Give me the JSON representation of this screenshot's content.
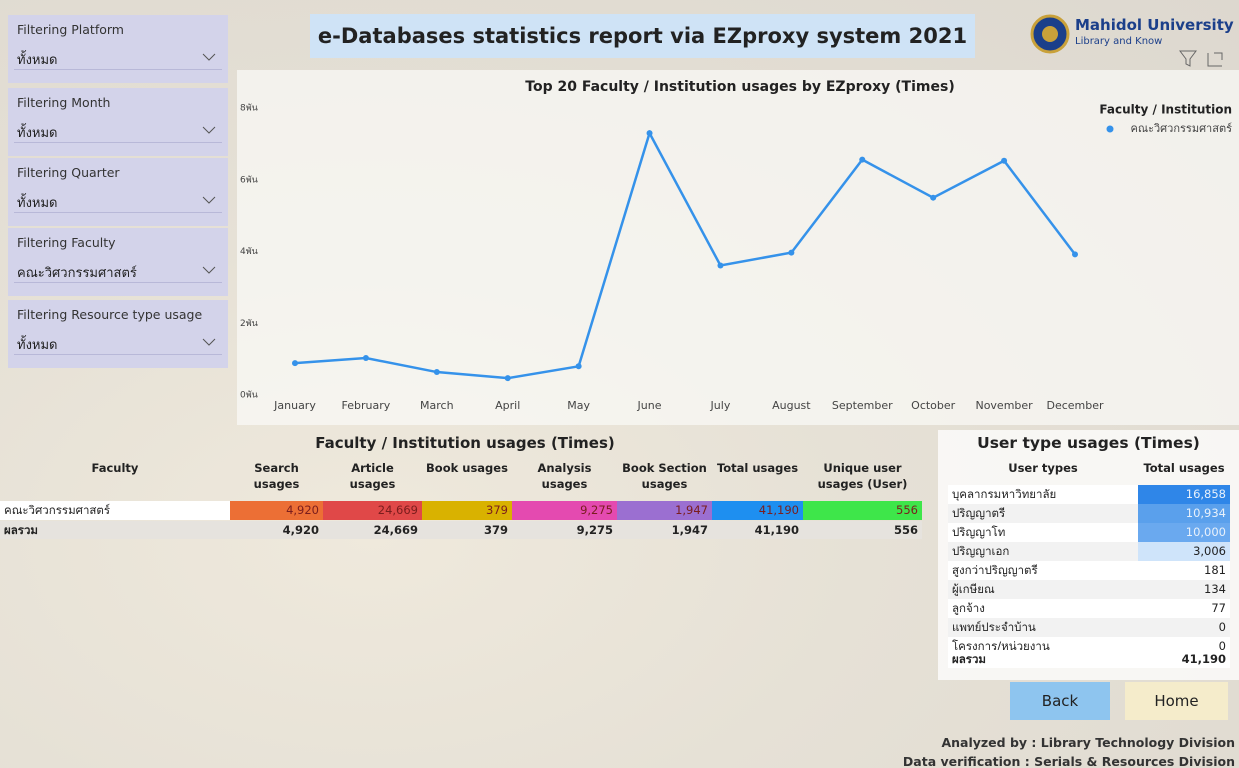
{
  "filters": [
    {
      "label": "Filtering Platform",
      "value": "ทั้งหมด"
    },
    {
      "label": "Filtering Month",
      "value": "ทั้งหมด"
    },
    {
      "label": "Filtering Quarter",
      "value": "ทั้งหมด"
    },
    {
      "label": "Filtering Faculty",
      "value": "คณะวิศวกรรมศาสตร์"
    },
    {
      "label": "Filtering Resource type usage",
      "value": "ทั้งหมด"
    }
  ],
  "header": {
    "title": "e-Databases statistics report via EZproxy system 2021",
    "logo_name": "Mahidol University",
    "logo_subtitle": "Library and Know"
  },
  "chart_data": {
    "type": "line",
    "title": "Top 20 Faculty / Institution usages by EZproxy (Times)",
    "legend_title": "Faculty / Institution",
    "legend": "top-right",
    "categories": [
      "January",
      "February",
      "March",
      "April",
      "May",
      "June",
      "July",
      "August",
      "September",
      "October",
      "November",
      "December"
    ],
    "series": [
      {
        "name": "คณะวิศวกรรมศาสตร์",
        "color": "#3592ea",
        "values": [
          890,
          1030,
          640,
          470,
          800,
          7300,
          3610,
          3970,
          6560,
          5500,
          6530,
          3920
        ]
      }
    ],
    "ylim": [
      0,
      8000
    ],
    "yticks": [
      {
        "value": 0,
        "label": "0พัน"
      },
      {
        "value": 2000,
        "label": "2พัน"
      },
      {
        "value": 4000,
        "label": "4พัน"
      },
      {
        "value": 6000,
        "label": "6พัน"
      },
      {
        "value": 8000,
        "label": "8พัน"
      }
    ],
    "grid": false
  },
  "faculty_table": {
    "title": "Faculty / Institution usages (Times)",
    "columns": [
      "Faculty",
      "Search usages",
      "Article usages",
      "Book usages",
      "Analysis usages",
      "Book Section usages",
      "Total usages",
      "Unique user usages (User)"
    ],
    "rows": [
      [
        "คณะวิศวกรรมศาสตร์",
        "4,920",
        "24,669",
        "379",
        "9,275",
        "1,947",
        "41,190",
        "556"
      ]
    ],
    "total": [
      "ผลรวม",
      "4,920",
      "24,669",
      "379",
      "9,275",
      "1,947",
      "41,190",
      "556"
    ]
  },
  "user_table": {
    "title": "User type usages (Times)",
    "columns": [
      "User types",
      "Total usages"
    ],
    "rows": [
      [
        "บุคลากรมหาวิทยาลัย",
        "16,858"
      ],
      [
        "ปริญญาตรี",
        "10,934"
      ],
      [
        "ปริญญาโท",
        "10,000"
      ],
      [
        "ปริญญาเอก",
        "3,006"
      ],
      [
        "สูงกว่าปริญญาตรี",
        "181"
      ],
      [
        "ผู้เกษียณ",
        "134"
      ],
      [
        "ลูกจ้าง",
        "77"
      ],
      [
        "แพทย์ประจำบ้าน",
        "0"
      ],
      [
        "โครงการ/หน่วยงาน",
        "0"
      ]
    ],
    "total": [
      "ผลรวม",
      "41,190"
    ]
  },
  "buttons": [
    "Back",
    "Home"
  ],
  "footer": [
    "Analyzed by : Library Technology Division",
    "Data verification : Serials & Resources Division"
  ]
}
